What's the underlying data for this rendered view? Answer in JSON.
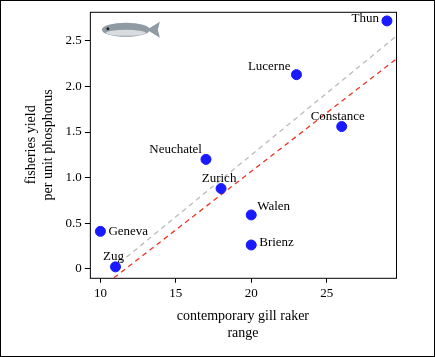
{
  "chart_data": {
    "type": "scatter",
    "x_label": "contemporary gill raker\nrange",
    "y_label": "fisheries yield\nper unit phosphorus",
    "xlim": [
      9.3,
      29.6
    ],
    "xticks": [
      10,
      15,
      20,
      25
    ],
    "ylim": [
      -0.1,
      2.82
    ],
    "yticks": [
      0,
      0.5,
      {
        "value": 1,
        "label": "1.0"
      },
      1.5,
      {
        "value": 2,
        "label": "2.0"
      },
      2.5
    ],
    "grid": false,
    "series": [
      {
        "type": "scatter",
        "color": "#1a1aff",
        "marker": "circle",
        "x": [
          29,
          23,
          26,
          17,
          18,
          20,
          20,
          10,
          11
        ],
        "values": [
          2.72,
          2.13,
          1.56,
          1.2,
          0.88,
          0.59,
          0.26,
          0.41,
          0.02
        ],
        "labels": [
          "Thun",
          "Lucerne",
          "Constance",
          "Neuchatel",
          "Zurich",
          "Walen",
          "Brienz",
          "Geneva",
          "Zug"
        ]
      },
      {
        "type": "line",
        "color": "#bbbbbb",
        "line_style": "dashed",
        "x": [
          10.8,
          29.6
        ],
        "values": [
          0,
          2.55
        ]
      },
      {
        "type": "line",
        "color": "#ee3322",
        "line_style": "dashed",
        "x": [
          10.9,
          29.6
        ],
        "values": [
          -0.1,
          2.3
        ]
      }
    ]
  }
}
